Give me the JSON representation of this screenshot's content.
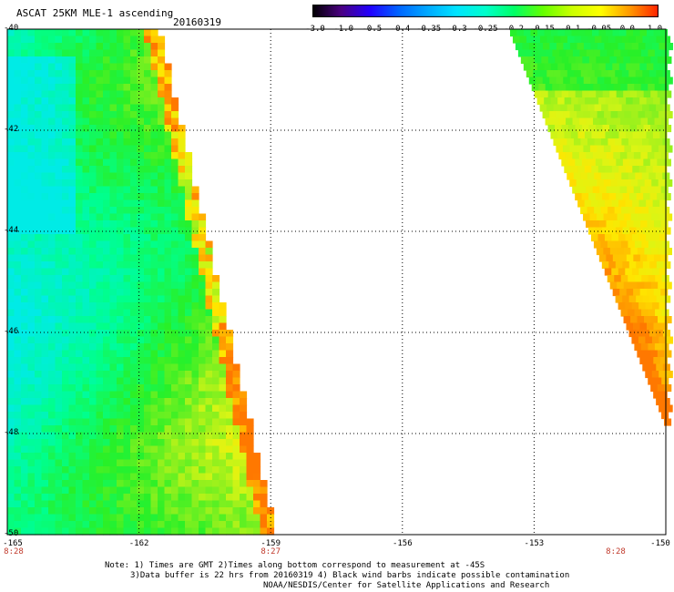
{
  "header": {
    "title": "ASCAT 25KM MLE-1 ascending",
    "date": "20160319"
  },
  "colorbar": {
    "labels": [
      "-3.0",
      "-1.0",
      "-0.5",
      "-0.4",
      "-0.35",
      "-0.3",
      "-0.25",
      "-0.2",
      "-0.15",
      "-0.1",
      "-0.05",
      "0.0",
      "1.0"
    ],
    "colors": [
      "#000000",
      "#4b0082",
      "#2200ff",
      "#0066ff",
      "#00aaff",
      "#00e5ff",
      "#00ffcc",
      "#00ff66",
      "#66ff00",
      "#ccff00",
      "#ffff00",
      "#ff9900",
      "#ff2200"
    ]
  },
  "map": {
    "lat_labels": [
      "-40",
      "-42",
      "-44",
      "-46",
      "-48",
      "-50"
    ],
    "lon_labels": [
      "-165",
      "-162",
      "-159",
      "-156",
      "-153",
      "-150"
    ],
    "time_labels": [
      {
        "text": "8:28",
        "lon": "-165"
      },
      {
        "text": "8:27",
        "lon": "-159"
      },
      {
        "text": "8:28",
        "lon": "-150"
      }
    ],
    "grid": "dotted",
    "extent": {
      "lon": [
        -165,
        -150
      ],
      "lat": [
        -50,
        -40
      ]
    }
  },
  "notes": {
    "line1": "Note: 1) Times are GMT 2)Times along bottom correspond to measurement at -45S",
    "line2": "3)Data buffer is 22 hrs from 20160319 4) Black wind barbs indicate possible contamination",
    "line3": "NOAA/NESDIS/Center for Satellite Applications and Research"
  }
}
